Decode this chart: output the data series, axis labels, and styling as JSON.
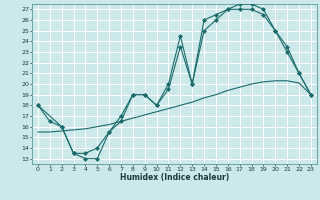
{
  "xlabel": "Humidex (Indice chaleur)",
  "bg_color": "#cce8ea",
  "line_color": "#1a6b6b",
  "grid_color": "#ffffff",
  "xlim": [
    -0.5,
    23.5
  ],
  "ylim": [
    12.5,
    27.5
  ],
  "xticks": [
    0,
    1,
    2,
    3,
    4,
    5,
    6,
    7,
    8,
    9,
    10,
    11,
    12,
    13,
    14,
    15,
    16,
    17,
    18,
    19,
    20,
    21,
    22,
    23
  ],
  "yticks": [
    13,
    14,
    15,
    16,
    17,
    18,
    19,
    20,
    21,
    22,
    23,
    24,
    25,
    26,
    27
  ],
  "line1_x": [
    0,
    1,
    2,
    3,
    4,
    5,
    6,
    7,
    8,
    9,
    10,
    11,
    12,
    13,
    14,
    15,
    16,
    17,
    18,
    19,
    20,
    21,
    22,
    23
  ],
  "line1_y": [
    18.0,
    16.5,
    16.0,
    13.5,
    13.0,
    13.0,
    15.5,
    16.5,
    19.0,
    19.0,
    18.0,
    20.0,
    24.5,
    20.0,
    26.0,
    26.5,
    27.0,
    27.0,
    27.0,
    26.5,
    25.0,
    23.0,
    21.0,
    19.0
  ],
  "line2_x": [
    0,
    2,
    3,
    4,
    5,
    6,
    7,
    8,
    9,
    10,
    11,
    12,
    13,
    14,
    15,
    16,
    17,
    18,
    19,
    20,
    21,
    22,
    23
  ],
  "line2_y": [
    18.0,
    16.0,
    13.5,
    13.5,
    14.0,
    15.5,
    17.0,
    19.0,
    19.0,
    18.0,
    19.5,
    23.5,
    20.0,
    25.0,
    26.0,
    27.0,
    27.5,
    27.5,
    27.0,
    25.0,
    23.5,
    21.0,
    19.0
  ],
  "line3_x": [
    0,
    1,
    2,
    3,
    4,
    5,
    6,
    7,
    8,
    9,
    10,
    11,
    12,
    13,
    14,
    15,
    16,
    17,
    18,
    19,
    20,
    21,
    22,
    23
  ],
  "line3_y": [
    15.5,
    15.5,
    15.6,
    15.7,
    15.8,
    16.0,
    16.2,
    16.5,
    16.8,
    17.1,
    17.4,
    17.7,
    18.0,
    18.3,
    18.7,
    19.0,
    19.4,
    19.7,
    20.0,
    20.2,
    20.3,
    20.3,
    20.1,
    19.0
  ]
}
